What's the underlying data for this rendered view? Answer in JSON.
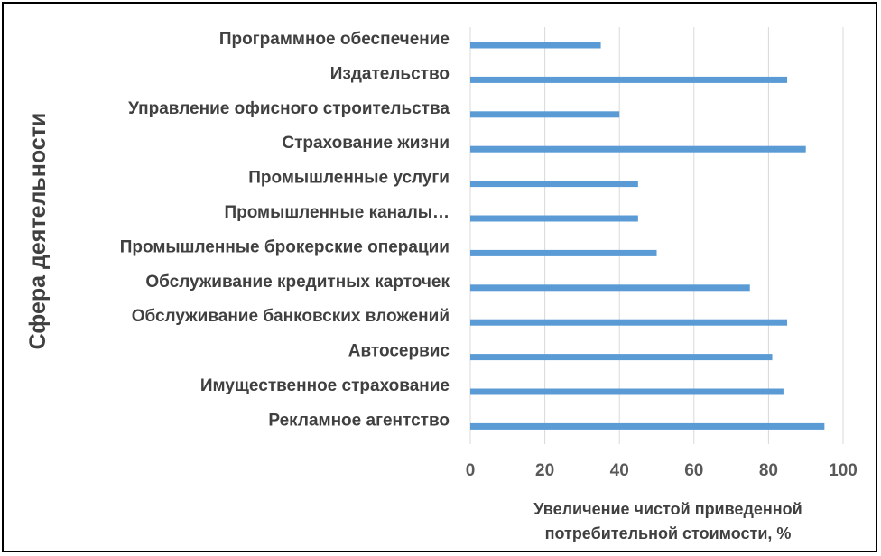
{
  "chart_data": {
    "type": "bar",
    "orientation": "horizontal",
    "ylabel": "Сфера деятельности",
    "xlabel_lines": [
      "Увеличение чистой приведенной",
      "потребительной стоимости, %"
    ],
    "categories": [
      "Программное обеспечение",
      "Издательство",
      "Управление офисного строительства",
      "Страхование жизни",
      "Промышленные услуги",
      "Промышленные каналы…",
      "Промышленные брокерские операции",
      "Обслуживание кредитных карточек",
      "Обслуживание банковских вложений",
      "Автосервис",
      "Имущественное страхование",
      "Рекламное агентство"
    ],
    "values": [
      35,
      85,
      40,
      90,
      45,
      45,
      50,
      75,
      85,
      81,
      84,
      95
    ],
    "xlim": [
      0,
      100
    ],
    "xticks": [
      0,
      20,
      40,
      60,
      80,
      100
    ],
    "grid": "vertical",
    "bar_color": "#5B9BD5",
    "grid_color": "#D9D9D9"
  }
}
